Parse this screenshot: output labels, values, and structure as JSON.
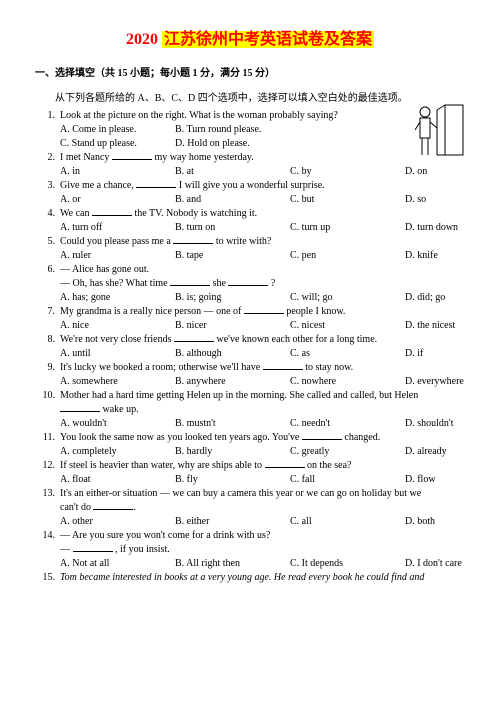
{
  "title": {
    "year": "2020",
    "text": "江苏徐州中考英语试卷及答案"
  },
  "section": "一、选择填空（共 15 小题；每小题 1 分，满分 15 分）",
  "instruction": "从下列各题所给的 A、B、C、D 四个选项中，选择可以填入空白处的最佳选项。",
  "questions": [
    {
      "n": "1.",
      "q": "Look at the picture on the right. What is the woman probably saying?",
      "opts": [
        "A. Come in please.",
        "B. Turn round please.",
        "C. Stand up please.",
        "D. Hold on please."
      ],
      "layout": "two"
    },
    {
      "n": "2.",
      "q": "I met Nancy ______ my way home yesterday.",
      "opts": [
        "A. in",
        "B. at",
        "C. by",
        "D. on"
      ],
      "layout": "four"
    },
    {
      "n": "3.",
      "q": "Give me a chance, ______ I will give you a wonderful surprise.",
      "opts": [
        "A. or",
        "B. and",
        "C. but",
        "D. so"
      ],
      "layout": "four"
    },
    {
      "n": "4.",
      "q": "We can ______ the TV. Nobody is watching it.",
      "opts": [
        "A. turn off",
        "B. turn on",
        "C. turn up",
        "D. turn down"
      ],
      "layout": "four"
    },
    {
      "n": "5.",
      "q": "Could you please pass me a ______ to write with?",
      "opts": [
        "A. ruler",
        "B. tape",
        "C. pen",
        "D. knife"
      ],
      "layout": "four"
    },
    {
      "n": "6.",
      "q": "— Alice has gone out.",
      "q2": "— Oh, has she? What time ______ she ______ ?",
      "opts": [
        "A. has; gone",
        "B. is; going",
        "C. will; go",
        "D. did; go"
      ],
      "layout": "four"
    },
    {
      "n": "7.",
      "q": "My grandma is a really nice person  —  one of ______ people I know.",
      "opts": [
        "A. nice",
        "B. nicer",
        "C. nicest",
        "D. the nicest"
      ],
      "layout": "four"
    },
    {
      "n": "8.",
      "q": "We're not very close friends ______ we've known each other for a long time.",
      "opts": [
        "A. until",
        "B. although",
        "C. as",
        "D. if"
      ],
      "layout": "four"
    },
    {
      "n": "9.",
      "q": "It's lucky we booked a room; otherwise we'll have ______ to stay now.",
      "opts": [
        "A. somewhere",
        "B. anywhere",
        "C. nowhere",
        "D. everywhere"
      ],
      "layout": "four"
    },
    {
      "n": "10.",
      "q": " Mother had a hard time getting Helen up in the morning. She called and called, but Helen",
      "q2": "______ wake up.",
      "opts": [
        "A. wouldn't",
        "B. mustn't",
        "C. needn't",
        "D. shouldn't"
      ],
      "layout": "four"
    },
    {
      "n": "11.",
      "q": " You look the same now as you looked ten years ago. You've ______ changed.",
      "opts": [
        "A. completely",
        "B. hardly",
        "C. greatly",
        "D. already"
      ],
      "layout": "four"
    },
    {
      "n": "12.",
      "q": " If steel is heavier than water, why are ships able to ______ on the sea?",
      "opts": [
        "A. float",
        "B. fly",
        "C. fall",
        "D. flow"
      ],
      "layout": "four"
    },
    {
      "n": "13.",
      "q": " It's an either-or situation — we can buy a camera this year or we can go on holiday but we",
      "q2": "can't do ______.",
      "opts": [
        "A. other",
        "B. either",
        "C. all",
        "D. both"
      ],
      "layout": "four"
    },
    {
      "n": "14.",
      "q": " — Are you sure you won't come for a drink with us?",
      "q2": "— ______ , if you insist.",
      "opts": [
        "A. Not at all",
        "B. All right then",
        "C. It depends",
        "D. I don't care"
      ],
      "layout": "four"
    },
    {
      "n": "15.",
      "q": " Tom became interested in books at a very young age. He read every book he could find and",
      "italic": true
    }
  ]
}
